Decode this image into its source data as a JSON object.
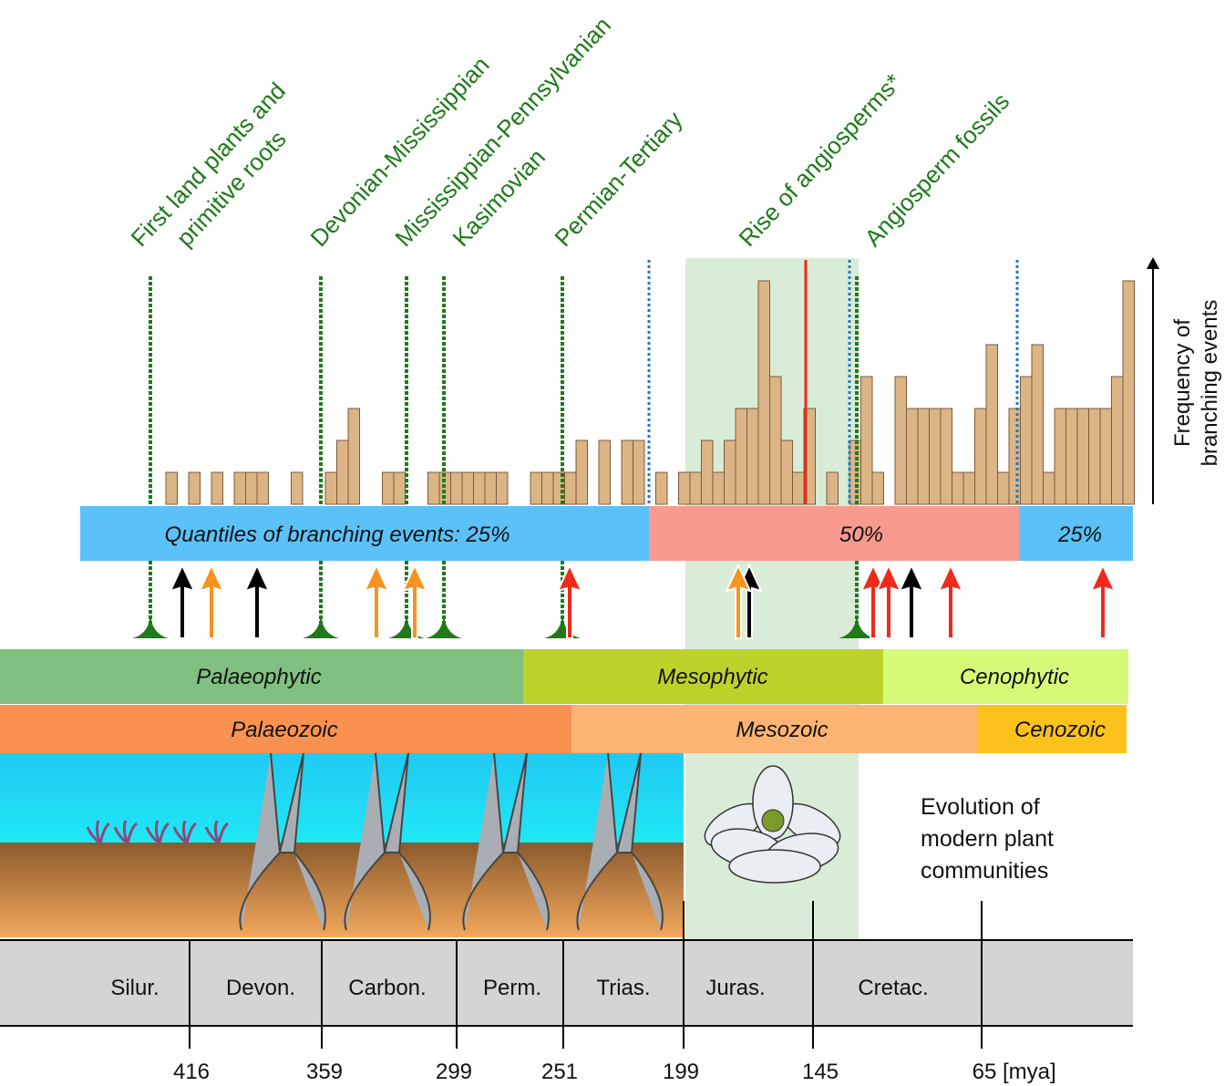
{
  "events": [
    [
      "First land plants and",
      "primitive roots"
    ],
    [
      "Devonian-Mississippian"
    ],
    [
      "Mississippian-Pennsylvanian"
    ],
    [
      "Kasimovian"
    ],
    [
      "Permian-Tertiary"
    ],
    [
      "Rise of angiosperms*"
    ],
    [
      "Angiosperm fossils"
    ]
  ],
  "histogram": {
    "counts": [
      1,
      0,
      1,
      0,
      1,
      0,
      1,
      1,
      1,
      0,
      0,
      1,
      0,
      0,
      1,
      2,
      3,
      0,
      0,
      1,
      1,
      0,
      0,
      1,
      1,
      1,
      1,
      1,
      1,
      1,
      0,
      0,
      1,
      1,
      1,
      1,
      2,
      0,
      2,
      0,
      2,
      2,
      0,
      1,
      0,
      1,
      1,
      2,
      1,
      2,
      3,
      3,
      7,
      4,
      2,
      1,
      3,
      0,
      1,
      0,
      2,
      4,
      1,
      0,
      4,
      3,
      3,
      3,
      3,
      1,
      1,
      3,
      5,
      1,
      3,
      4,
      5,
      1,
      3,
      3,
      3,
      3,
      3,
      4,
      7
    ]
  },
  "axis_label": [
    "Frequency of",
    "branching events"
  ],
  "quantiles": [
    "Quantiles of branching events: 25%",
    "50%",
    "25%"
  ],
  "floras": [
    "Palaeophytic",
    "Mesophytic",
    "Cenophytic"
  ],
  "eras": [
    "Palaeozoic",
    "Mesozoic",
    "Cenozoic"
  ],
  "caption": [
    "Evolution of",
    "modern plant",
    "communities"
  ],
  "periods": [
    "Silur.",
    "Devon.",
    "Carbon.",
    "Perm.",
    "Trias.",
    "Juras.",
    "Cretac."
  ],
  "ages": [
    "416",
    "359",
    "299",
    "251",
    "199",
    "145",
    "65"
  ],
  "age_unit": "[mya]"
}
